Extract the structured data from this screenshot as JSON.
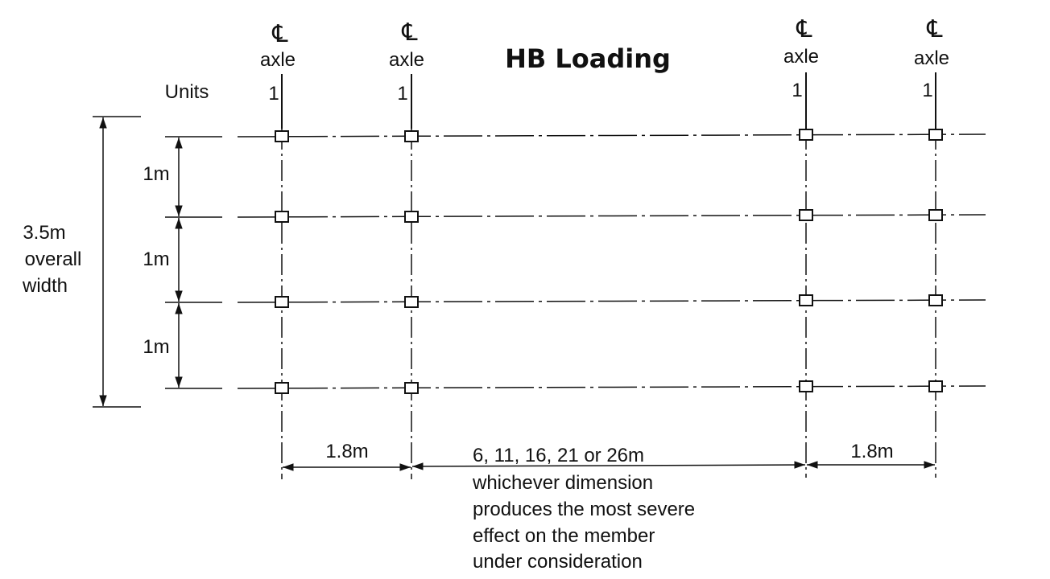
{
  "title": "HB Loading",
  "axles": [
    {
      "cl_symbol": "℄",
      "label": "axle",
      "units": "1"
    },
    {
      "cl_symbol": "℄",
      "label": "axle",
      "units": "1"
    },
    {
      "cl_symbol": "℄",
      "label": "axle",
      "units": "1"
    },
    {
      "cl_symbol": "℄",
      "label": "axle",
      "units": "1"
    }
  ],
  "units_label": "Units",
  "overall_width": {
    "line1": "3.5m",
    "line2": "overall",
    "line3": "width"
  },
  "wheel_spacing": [
    "1m",
    "1m",
    "1m"
  ],
  "axle_spacing": {
    "left": "1.8m",
    "middle": "6, 11, 16, 21 or 26m",
    "right": "1.8m"
  },
  "note_lines": [
    "whichever dimension",
    "produces the most severe",
    "effect on the member",
    "under consideration"
  ]
}
